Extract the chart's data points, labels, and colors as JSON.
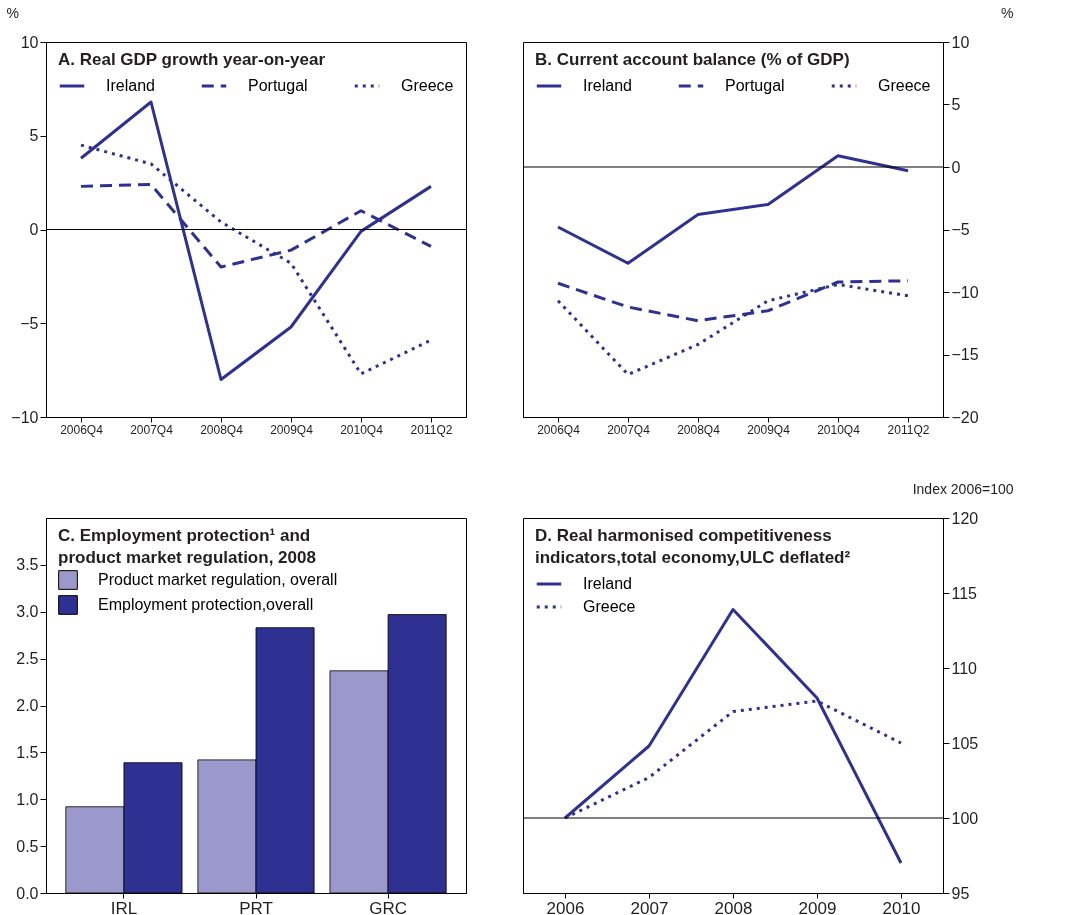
{
  "chart_data": [
    {
      "type": "line",
      "title": "A. Real GDP growth year-on-year",
      "ylabel": "%",
      "categories": [
        "2006Q4",
        "2007Q4",
        "2008Q4",
        "2009Q4",
        "2010Q4",
        "2011Q2"
      ],
      "series": [
        {
          "name": "Ireland",
          "color": "#2e3192",
          "line_style": "solid",
          "values": [
            3.8,
            6.8,
            -8.0,
            -5.2,
            -0.1,
            2.3
          ]
        },
        {
          "name": "Portugal",
          "color": "#2e3192",
          "line_style": "dashed",
          "values": [
            2.3,
            2.4,
            -2.0,
            -1.1,
            1.0,
            -0.9
          ]
        },
        {
          "name": "Greece",
          "color": "#2e3192",
          "line_style": "dotted",
          "values": [
            4.5,
            3.5,
            0.4,
            -1.8,
            -7.7,
            -5.9
          ]
        }
      ],
      "ylim": [
        -10,
        10
      ],
      "yticks": [
        -10,
        -5,
        0,
        5,
        10
      ],
      "ref_lines": [
        {
          "axis": "y",
          "value": 0,
          "color": "#000000"
        }
      ],
      "grid": false,
      "legend": "top"
    },
    {
      "type": "line",
      "title": "B. Current account balance (% of GDP)",
      "ylabel": "%",
      "categories": [
        "2006Q4",
        "2007Q4",
        "2008Q4",
        "2009Q4",
        "2010Q4",
        "2011Q2"
      ],
      "series": [
        {
          "name": "Ireland",
          "color": "#2e3192",
          "line_style": "solid",
          "values": [
            -4.8,
            -7.7,
            -3.8,
            -3.0,
            0.9,
            -0.3
          ]
        },
        {
          "name": "Portugal",
          "color": "#2e3192",
          "line_style": "dashed",
          "values": [
            -9.3,
            -11.2,
            -12.3,
            -11.5,
            -9.2,
            -9.1
          ]
        },
        {
          "name": "Greece",
          "color": "#2e3192",
          "line_style": "dotted",
          "values": [
            -10.7,
            -16.6,
            -14.2,
            -10.7,
            -9.4,
            -10.3
          ]
        }
      ],
      "ylim": [
        -20,
        10
      ],
      "yticks": [
        -20,
        -15,
        -10,
        -5,
        0,
        5,
        10
      ],
      "ref_lines": [
        {
          "axis": "y",
          "value": 0,
          "color": "#000000"
        }
      ],
      "grid": false,
      "legend": "top"
    },
    {
      "type": "bar",
      "title": "C. Employment protection¹ and product market regulation, 2008",
      "categories": [
        "IRL",
        "PRT",
        "GRC"
      ],
      "series": [
        {
          "name": "Product market regulation, overall",
          "color": "#9b98cc",
          "values": [
            0.92,
            1.42,
            2.37
          ]
        },
        {
          "name": "Employment protection,overall",
          "color": "#2e3192",
          "values": [
            1.39,
            2.83,
            2.97
          ]
        }
      ],
      "ylim": [
        0,
        4
      ],
      "yticks": [
        {
          "value": 0,
          "label": "0.0"
        },
        0.5,
        {
          "value": 1,
          "label": "1.0"
        },
        1.5,
        {
          "value": 2,
          "label": "2.0"
        },
        2.5,
        {
          "value": 3,
          "label": "3.0"
        },
        3.5
      ],
      "grid": false,
      "legend": "top left"
    },
    {
      "type": "line",
      "title": "D. Real harmonised competitiveness indicators,total economy,ULC deflated²",
      "ylabel": "Index 2006=100",
      "categories": [
        "2006",
        "2007",
        "2008",
        "2009",
        "2010"
      ],
      "series": [
        {
          "name": "Ireland",
          "color": "#2e3192",
          "line_style": "solid",
          "values": [
            100,
            104.8,
            113.9,
            108.0,
            97.0
          ]
        },
        {
          "name": "Greece",
          "color": "#2e3192",
          "line_style": "dotted",
          "values": [
            100,
            102.7,
            107.1,
            107.8,
            105.0
          ]
        }
      ],
      "ylim": [
        95,
        120
      ],
      "yticks": [
        95,
        100,
        105,
        110,
        115,
        120
      ],
      "ref_lines": [
        {
          "axis": "y",
          "value": 100,
          "color": "#000000"
        }
      ],
      "grid": false,
      "legend": "top left"
    }
  ]
}
